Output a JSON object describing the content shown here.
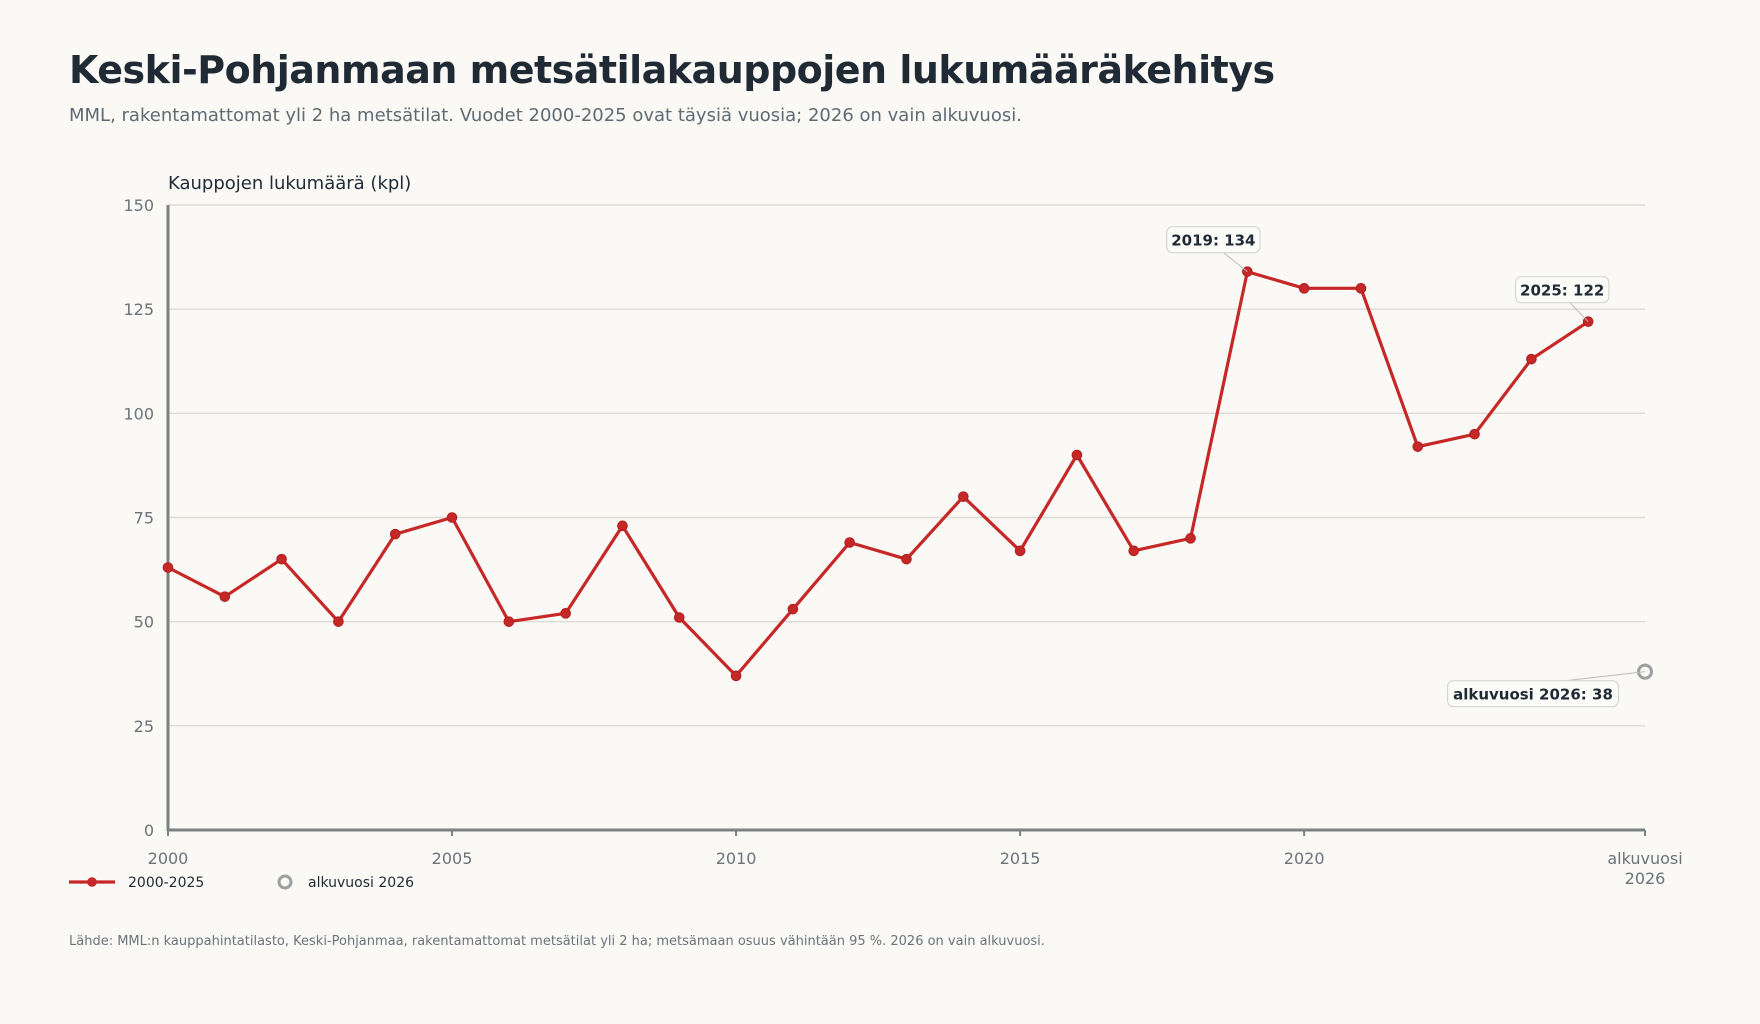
{
  "title": "Keski-Pohjanmaan metsätilakauppojen lukumääräkehitys",
  "subtitle": "MML, rakentamattomat yli 2 ha metsätilat. Vuodet 2000-2025 ovat täysiä vuosia; 2026 on vain alkuvuosi.",
  "source": "Lähde: MML:n kauppahintatilasto, Keski-Pohjanmaa, rakentamattomat metsätilat yli 2 ha; metsämaan osuus vähintään 95 %. 2026 on vain alkuvuosi.",
  "colors": {
    "series": "#c62828",
    "partial": "#9aa0a0",
    "axis": "#7a8282",
    "grid": "#dcdcd6"
  },
  "chart_data": {
    "type": "line",
    "ylabel": "Kauppojen lukumäärä (kpl)",
    "xlabel": "",
    "ylim": [
      0,
      150
    ],
    "yticks": [
      0,
      25,
      50,
      75,
      100,
      125,
      150
    ],
    "xticks": [
      {
        "x": 2000,
        "label": "2000"
      },
      {
        "x": 2005,
        "label": "2005"
      },
      {
        "x": 2010,
        "label": "2010"
      },
      {
        "x": 2015,
        "label": "2015"
      },
      {
        "x": 2020,
        "label": "2020"
      },
      {
        "x": 2026,
        "label": "alkuvuosi\n2026"
      }
    ],
    "xlim": [
      2000,
      2026
    ],
    "grid": true,
    "legend_position": "bottom-left",
    "series": [
      {
        "name": "2000-2025",
        "x": [
          2000,
          2001,
          2002,
          2003,
          2004,
          2005,
          2006,
          2007,
          2008,
          2009,
          2010,
          2011,
          2012,
          2013,
          2014,
          2015,
          2016,
          2017,
          2018,
          2019,
          2020,
          2021,
          2022,
          2023,
          2024,
          2025
        ],
        "values": [
          63,
          56,
          65,
          50,
          71,
          75,
          50,
          52,
          73,
          51,
          37,
          53,
          69,
          65,
          80,
          67,
          90,
          67,
          70,
          134,
          130,
          130,
          92,
          95,
          113,
          122
        ]
      },
      {
        "name": "alkuvuosi 2026",
        "x": [
          2026
        ],
        "values": [
          38
        ]
      }
    ],
    "annotations": [
      {
        "x": 2019,
        "y": 134,
        "text": "2019: 134"
      },
      {
        "x": 2025,
        "y": 122,
        "text": "2025: 122"
      },
      {
        "x": 2026,
        "y": 38,
        "text": "alkuvuosi 2026: 38"
      }
    ]
  }
}
